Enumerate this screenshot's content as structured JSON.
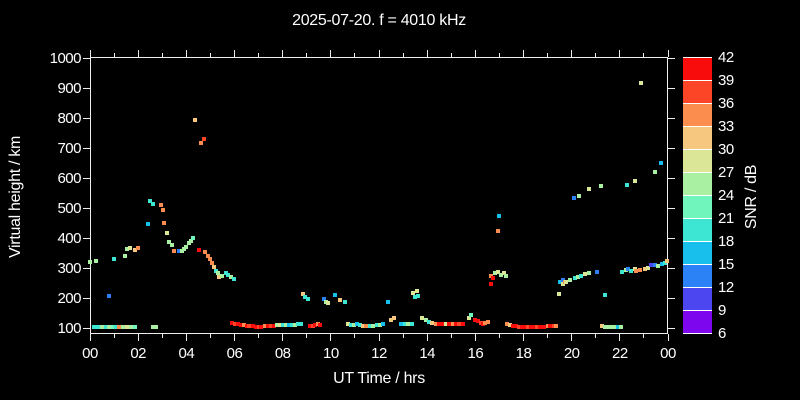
{
  "title": "2025-07-20. f = 4010 kHz",
  "axes": {
    "x_label": "UT Time / hrs",
    "y_label": "Virtual height / km",
    "x_tick_labels": [
      "00",
      "02",
      "04",
      "06",
      "08",
      "10",
      "12",
      "14",
      "16",
      "18",
      "20",
      "22",
      "00"
    ],
    "y_tick_labels": [
      "100",
      "200",
      "300",
      "400",
      "500",
      "600",
      "700",
      "800",
      "900",
      "1000"
    ]
  },
  "colorbar": {
    "label": "SNR / dB",
    "tick_labels": [
      "42",
      "39",
      "36",
      "33",
      "30",
      "27",
      "24",
      "21",
      "18",
      "15",
      "12",
      "9",
      "6"
    ],
    "value_min": 6,
    "value_max": 42,
    "step": 3,
    "segment_colors_bottom_to_top": [
      "#7e06ee",
      "#4b46f0",
      "#2a82f6",
      "#18bfec",
      "#3de5d3",
      "#70f5bc",
      "#aaf0a2",
      "#dbe697",
      "#f6c87f",
      "#fb8d4e",
      "#fb4526",
      "#f80c0c"
    ]
  },
  "chart_data": {
    "type": "scatter",
    "title": "2025-07-20. f = 4010 kHz",
    "xlabel": "UT Time / hrs",
    "ylabel": "Virtual height / km",
    "colorbar_label": "SNR / dB",
    "xlim": [
      0,
      24
    ],
    "ylim": [
      100,
      1000
    ],
    "snr_range": [
      6,
      42
    ],
    "grid": false,
    "legend": "colorbar-right",
    "points_t_h_snr": [
      [
        0.18,
        104,
        19.5
      ],
      [
        0.33,
        103,
        19.5
      ],
      [
        0.5,
        104,
        25.5
      ],
      [
        0.65,
        103,
        19.5
      ],
      [
        0.8,
        104,
        25.5
      ],
      [
        0.95,
        103,
        22.5
      ],
      [
        1.1,
        104,
        19.5
      ],
      [
        1.22,
        104,
        34.5
      ],
      [
        1.38,
        103,
        25.5
      ],
      [
        1.55,
        104,
        28.5
      ],
      [
        1.7,
        103,
        25.5
      ],
      [
        1.85,
        104,
        22.5
      ],
      [
        0.02,
        320,
        25.5
      ],
      [
        0.25,
        322,
        25.5
      ],
      [
        0.78,
        208,
        13.5
      ],
      [
        1.0,
        330,
        19.5
      ],
      [
        1.45,
        340,
        25.5
      ],
      [
        1.55,
        363,
        25.5
      ],
      [
        1.66,
        368,
        28.5
      ],
      [
        1.88,
        361,
        31.5
      ],
      [
        2.0,
        367,
        34.5
      ],
      [
        2.4,
        447,
        16.5
      ],
      [
        2.5,
        524,
        19.5
      ],
      [
        2.62,
        514,
        19.5
      ],
      [
        2.93,
        510,
        34.5
      ],
      [
        3.03,
        493,
        34.5
      ],
      [
        3.07,
        449,
        34.5
      ],
      [
        3.21,
        416,
        28.5
      ],
      [
        2.62,
        104,
        25.5
      ],
      [
        2.75,
        104,
        25.5
      ],
      [
        3.3,
        386,
        25.5
      ],
      [
        3.42,
        376,
        25.5
      ],
      [
        3.5,
        358,
        34.5
      ],
      [
        3.68,
        358,
        13.5
      ],
      [
        3.81,
        357,
        25.5
      ],
      [
        3.9,
        362,
        25.5
      ],
      [
        4.0,
        371,
        25.5
      ],
      [
        4.1,
        382,
        25.5
      ],
      [
        4.21,
        391,
        25.5
      ],
      [
        4.28,
        399,
        22.5
      ],
      [
        4.34,
        793,
        31.5
      ],
      [
        4.6,
        718,
        34.5
      ],
      [
        4.73,
        729,
        37.5
      ],
      [
        4.52,
        360,
        40.5
      ],
      [
        4.76,
        354,
        34.5
      ],
      [
        4.9,
        340,
        34.5
      ],
      [
        4.97,
        329,
        34.5
      ],
      [
        5.06,
        318,
        34.5
      ],
      [
        5.15,
        304,
        31.5
      ],
      [
        5.22,
        291,
        19.5
      ],
      [
        5.31,
        282,
        25.5
      ],
      [
        5.35,
        269,
        31.5
      ],
      [
        5.48,
        274,
        25.5
      ],
      [
        5.63,
        284,
        19.5
      ],
      [
        5.72,
        277,
        19.5
      ],
      [
        5.84,
        269,
        25.5
      ],
      [
        5.96,
        263,
        19.5
      ],
      [
        5.9,
        117,
        40.5
      ],
      [
        6.02,
        115,
        37.5
      ],
      [
        6.14,
        113,
        40.5
      ],
      [
        6.26,
        111,
        40.5
      ],
      [
        6.38,
        110,
        34.5
      ],
      [
        6.5,
        108,
        40.5
      ],
      [
        6.62,
        107,
        37.5
      ],
      [
        6.75,
        106,
        40.5
      ],
      [
        6.88,
        105,
        40.5
      ],
      [
        7.0,
        105,
        37.5
      ],
      [
        7.12,
        105,
        40.5
      ],
      [
        7.25,
        106,
        34.5
      ],
      [
        7.38,
        106,
        40.5
      ],
      [
        7.5,
        107,
        37.5
      ],
      [
        7.62,
        108,
        40.5
      ],
      [
        7.78,
        110,
        25.5
      ],
      [
        7.9,
        109,
        28.5
      ],
      [
        8.02,
        110,
        19.5
      ],
      [
        8.15,
        109,
        25.5
      ],
      [
        8.27,
        111,
        16.5
      ],
      [
        8.4,
        110,
        19.5
      ],
      [
        8.52,
        111,
        25.5
      ],
      [
        8.65,
        112,
        19.5
      ],
      [
        8.78,
        114,
        19.5
      ],
      [
        8.83,
        213,
        31.5
      ],
      [
        8.92,
        204,
        19.5
      ],
      [
        9.05,
        198,
        19.5
      ],
      [
        9.12,
        108,
        40.5
      ],
      [
        9.24,
        107,
        37.5
      ],
      [
        9.35,
        110,
        40.5
      ],
      [
        9.45,
        113,
        34.5
      ],
      [
        9.55,
        110,
        40.5
      ],
      [
        9.73,
        197,
        13.5
      ],
      [
        9.82,
        187,
        25.5
      ],
      [
        9.9,
        184,
        28.5
      ],
      [
        10.19,
        210,
        16.5
      ],
      [
        10.36,
        194,
        31.5
      ],
      [
        10.58,
        186,
        19.5
      ],
      [
        10.7,
        112,
        28.5
      ],
      [
        10.82,
        111,
        19.5
      ],
      [
        10.95,
        110,
        25.5
      ],
      [
        11.08,
        113,
        16.5
      ],
      [
        11.2,
        110,
        19.5
      ],
      [
        11.34,
        108,
        31.5
      ],
      [
        11.48,
        107,
        34.5
      ],
      [
        11.62,
        107,
        19.5
      ],
      [
        11.75,
        108,
        25.5
      ],
      [
        11.9,
        109,
        19.5
      ],
      [
        12.05,
        110,
        25.5
      ],
      [
        12.18,
        112,
        16.5
      ],
      [
        12.38,
        187,
        16.5
      ],
      [
        12.51,
        126,
        31.5
      ],
      [
        12.61,
        133,
        31.5
      ],
      [
        12.93,
        115,
        16.5
      ],
      [
        13.08,
        115,
        19.5
      ],
      [
        13.22,
        114,
        25.5
      ],
      [
        13.38,
        115,
        19.5
      ],
      [
        13.42,
        216,
        28.5
      ],
      [
        13.56,
        224,
        28.5
      ],
      [
        13.49,
        202,
        19.5
      ],
      [
        13.62,
        207,
        19.5
      ],
      [
        13.8,
        135,
        28.5
      ],
      [
        13.94,
        127,
        25.5
      ],
      [
        14.08,
        121,
        19.5
      ],
      [
        14.22,
        118,
        31.5
      ],
      [
        14.36,
        115,
        34.5
      ],
      [
        14.5,
        114,
        40.5
      ],
      [
        14.64,
        113,
        40.5
      ],
      [
        14.78,
        114,
        28.5
      ],
      [
        14.92,
        113,
        40.5
      ],
      [
        15.06,
        114,
        34.5
      ],
      [
        15.2,
        114,
        40.5
      ],
      [
        15.34,
        114,
        37.5
      ],
      [
        15.48,
        115,
        40.5
      ],
      [
        15.74,
        132,
        28.5
      ],
      [
        15.84,
        143,
        22.5
      ],
      [
        15.98,
        127,
        40.5
      ],
      [
        16.1,
        122,
        40.5
      ],
      [
        16.22,
        118,
        37.5
      ],
      [
        16.32,
        115,
        40.5
      ],
      [
        16.42,
        116,
        34.5
      ],
      [
        16.52,
        120,
        34.5
      ],
      [
        16.64,
        246,
        40.5
      ],
      [
        16.94,
        423,
        34.5
      ],
      [
        16.98,
        474,
        16.5
      ],
      [
        16.63,
        274,
        34.5
      ],
      [
        16.74,
        266,
        40.5
      ],
      [
        16.8,
        284,
        25.5
      ],
      [
        16.95,
        288,
        28.5
      ],
      [
        17.06,
        277,
        25.5
      ],
      [
        17.18,
        282,
        28.5
      ],
      [
        17.28,
        273,
        25.5
      ],
      [
        17.32,
        112,
        34.5
      ],
      [
        17.45,
        110,
        31.5
      ],
      [
        17.58,
        108,
        40.5
      ],
      [
        17.7,
        106,
        40.5
      ],
      [
        17.82,
        105,
        37.5
      ],
      [
        17.95,
        104,
        40.5
      ],
      [
        18.08,
        104,
        40.5
      ],
      [
        18.2,
        104,
        37.5
      ],
      [
        18.32,
        104,
        40.5
      ],
      [
        18.45,
        104,
        40.5
      ],
      [
        18.58,
        105,
        37.5
      ],
      [
        18.7,
        105,
        40.5
      ],
      [
        18.85,
        105,
        40.5
      ],
      [
        19.0,
        106,
        34.5
      ],
      [
        19.12,
        106,
        40.5
      ],
      [
        19.25,
        107,
        37.5
      ],
      [
        19.37,
        107,
        34.5
      ],
      [
        19.46,
        212,
        28.5
      ],
      [
        21.4,
        210,
        19.5
      ],
      [
        19.5,
        252,
        16.5
      ],
      [
        19.64,
        247,
        28.5
      ],
      [
        19.66,
        260,
        13.5
      ],
      [
        19.72,
        252,
        34.5
      ],
      [
        19.78,
        254,
        28.5
      ],
      [
        19.92,
        260,
        25.5
      ],
      [
        20.12,
        266,
        19.5
      ],
      [
        20.26,
        271,
        25.5
      ],
      [
        20.4,
        273,
        19.5
      ],
      [
        20.57,
        279,
        28.5
      ],
      [
        20.7,
        282,
        25.5
      ],
      [
        21.06,
        288,
        13.5
      ],
      [
        21.27,
        107,
        31.5
      ],
      [
        21.4,
        104,
        25.5
      ],
      [
        21.53,
        103,
        25.5
      ],
      [
        21.66,
        104,
        25.5
      ],
      [
        21.8,
        104,
        25.5
      ],
      [
        21.93,
        105,
        16.5
      ],
      [
        22.03,
        104,
        25.5
      ],
      [
        22.1,
        287,
        19.5
      ],
      [
        22.27,
        294,
        25.5
      ],
      [
        22.34,
        297,
        13.5
      ],
      [
        22.45,
        290,
        19.5
      ],
      [
        22.62,
        297,
        28.5
      ],
      [
        22.69,
        291,
        34.5
      ],
      [
        22.85,
        294,
        34.5
      ],
      [
        23.03,
        298,
        31.5
      ],
      [
        23.17,
        300,
        28.5
      ],
      [
        23.31,
        309,
        10.5
      ],
      [
        23.44,
        311,
        13.5
      ],
      [
        23.58,
        306,
        25.5
      ],
      [
        23.76,
        313,
        16.5
      ],
      [
        23.86,
        317,
        19.5
      ],
      [
        23.97,
        322,
        31.5
      ],
      [
        20.1,
        532,
        13.5
      ],
      [
        20.3,
        540,
        25.5
      ],
      [
        20.72,
        563,
        28.5
      ],
      [
        21.2,
        573,
        25.5
      ],
      [
        22.28,
        576,
        19.5
      ],
      [
        22.61,
        589,
        28.5
      ],
      [
        23.47,
        619,
        25.5
      ],
      [
        23.69,
        651,
        16.5
      ],
      [
        22.89,
        918,
        28.5
      ]
    ]
  }
}
